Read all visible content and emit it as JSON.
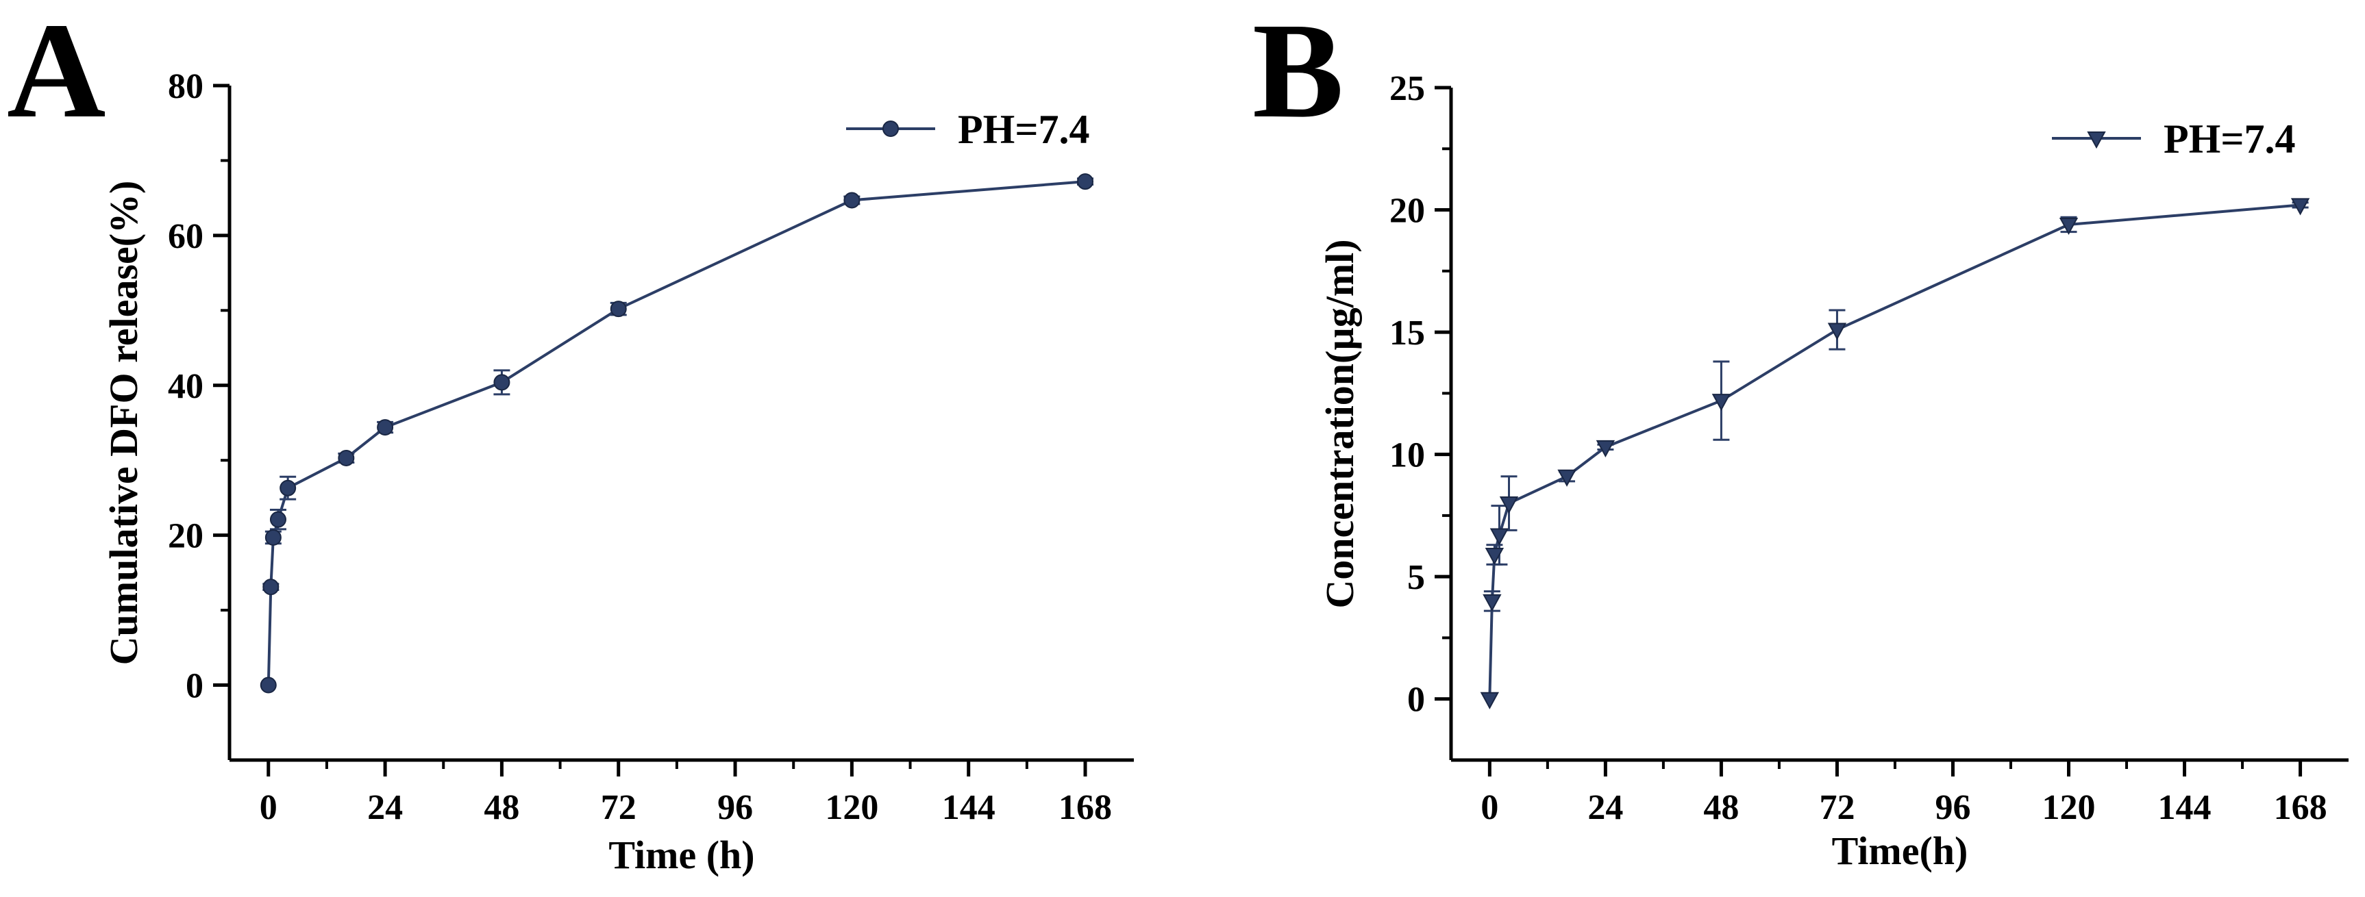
{
  "colors": {
    "series": "#2c3e66",
    "axis": "#000000",
    "background": "#ffffff"
  },
  "chart_data": [
    {
      "panel": "A",
      "type": "line",
      "marker": "circle",
      "title": "",
      "xlabel": "Time (h)",
      "ylabel": "Cumulative DFO release(%)",
      "xlim": [
        -8,
        178
      ],
      "ylim": [
        -10,
        80
      ],
      "xticks": [
        0,
        24,
        48,
        72,
        96,
        120,
        144,
        168
      ],
      "yticks": [
        0,
        20,
        40,
        60,
        80
      ],
      "legend": {
        "position": "top-right"
      },
      "series": [
        {
          "name": "PH=7.4",
          "x": [
            0,
            0.5,
            1,
            2,
            4,
            16,
            24,
            48,
            72,
            120,
            168
          ],
          "y": [
            0,
            13.1,
            19.7,
            22.1,
            26.3,
            30.3,
            34.4,
            40.4,
            50.2,
            64.7,
            67.2
          ],
          "err": [
            0,
            0.4,
            0.8,
            1.3,
            1.5,
            0.6,
            0.7,
            1.6,
            0.8,
            0.5,
            0.4
          ]
        }
      ]
    },
    {
      "panel": "B",
      "type": "line",
      "marker": "triangle-down",
      "title": "",
      "xlabel": "Time(h)",
      "ylabel": "Concentration(µg/ml)",
      "xlim": [
        -8,
        178
      ],
      "ylim": [
        -2.5,
        25
      ],
      "xticks": [
        0,
        24,
        48,
        72,
        96,
        120,
        144,
        168
      ],
      "yticks": [
        0,
        5,
        10,
        15,
        20,
        25
      ],
      "legend": {
        "position": "top-right"
      },
      "series": [
        {
          "name": "PH=7.4",
          "x": [
            0,
            0.5,
            1,
            2,
            4,
            16,
            24,
            48,
            72,
            120,
            168
          ],
          "y": [
            0,
            4.0,
            5.9,
            6.7,
            8.0,
            9.1,
            10.3,
            12.2,
            15.1,
            19.4,
            20.2
          ],
          "err": [
            0,
            0.4,
            0.4,
            1.2,
            1.1,
            0.2,
            0.1,
            1.6,
            0.8,
            0.3,
            0.1
          ]
        }
      ]
    }
  ]
}
